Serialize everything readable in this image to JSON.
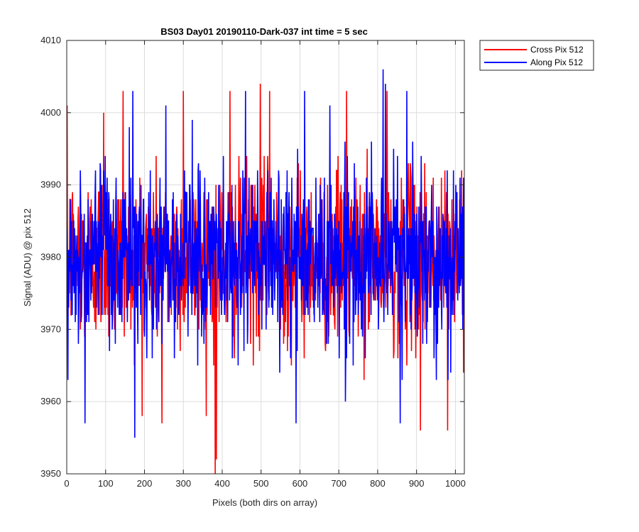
{
  "chart_data": {
    "type": "line",
    "title": "BS03 Day01 20190110-Dark-037 int time = 5 sec",
    "xlabel": "Pixels (both dirs on array)",
    "ylabel": "Signal (ADU) @ pix 512",
    "xlim": [
      0,
      1023
    ],
    "ylim": [
      3950,
      4010
    ],
    "xticks": [
      0,
      100,
      200,
      300,
      400,
      500,
      600,
      700,
      800,
      900,
      1000
    ],
    "yticks": [
      3950,
      3960,
      3970,
      3980,
      3990,
      4000,
      4010
    ],
    "grid": true,
    "legend_position": "outside-top-right",
    "series": [
      {
        "name": "Cross Pix 512",
        "color": "#ff0000",
        "mean": 3980,
        "std_approx": 6,
        "samples": 1024,
        "extremes": [
          {
            "x": 1,
            "y": 4001
          },
          {
            "x": 95,
            "y": 4000
          },
          {
            "x": 145,
            "y": 4003
          },
          {
            "x": 245,
            "y": 3957
          },
          {
            "x": 300,
            "y": 4003
          },
          {
            "x": 382,
            "y": 3950
          },
          {
            "x": 385,
            "y": 3952
          },
          {
            "x": 420,
            "y": 4003
          },
          {
            "x": 498,
            "y": 4004
          },
          {
            "x": 522,
            "y": 4003
          },
          {
            "x": 720,
            "y": 4003
          },
          {
            "x": 824,
            "y": 4003
          },
          {
            "x": 910,
            "y": 3956
          },
          {
            "x": 980,
            "y": 3956
          }
        ]
      },
      {
        "name": "Along Pix 512",
        "color": "#0000ff",
        "mean": 3980,
        "std_approx": 6,
        "samples": 1024,
        "extremes": [
          {
            "x": 3,
            "y": 3963
          },
          {
            "x": 47,
            "y": 3957
          },
          {
            "x": 170,
            "y": 4003
          },
          {
            "x": 175,
            "y": 3955
          },
          {
            "x": 255,
            "y": 4001
          },
          {
            "x": 460,
            "y": 4003
          },
          {
            "x": 590,
            "y": 3957
          },
          {
            "x": 612,
            "y": 4003
          },
          {
            "x": 814,
            "y": 4006
          },
          {
            "x": 820,
            "y": 4004
          },
          {
            "x": 858,
            "y": 3957
          },
          {
            "x": 875,
            "y": 4003
          }
        ]
      }
    ]
  }
}
